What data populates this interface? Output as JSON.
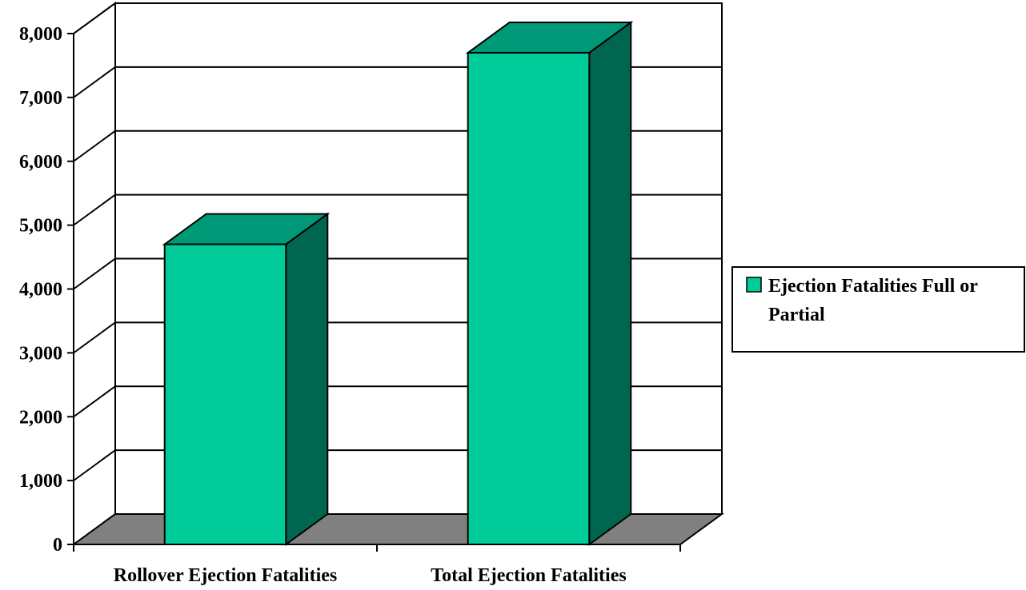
{
  "chart_data": {
    "type": "bar",
    "title": "",
    "xlabel": "",
    "ylabel": "",
    "categories": [
      "Rollover Ejection Fatalities",
      "Total Ejection Fatalities"
    ],
    "series": [
      {
        "name": "Ejection Fatalities Full or Partial",
        "values": [
          4700,
          7700
        ]
      }
    ],
    "ylim": [
      0,
      8000
    ],
    "yticks": [
      "0",
      "1,000",
      "2,000",
      "3,000",
      "4,000",
      "5,000",
      "6,000",
      "7,000",
      "8,000"
    ],
    "grid": true,
    "three_d": true,
    "legend": {
      "position": "right",
      "lines": [
        "Ejection Fatalities Full or",
        "Partial"
      ]
    },
    "colors": {
      "bar_front": "#00CC99",
      "bar_top": "#009977",
      "bar_side": "#006650",
      "floor": "#808080",
      "grid": "#000000"
    }
  }
}
